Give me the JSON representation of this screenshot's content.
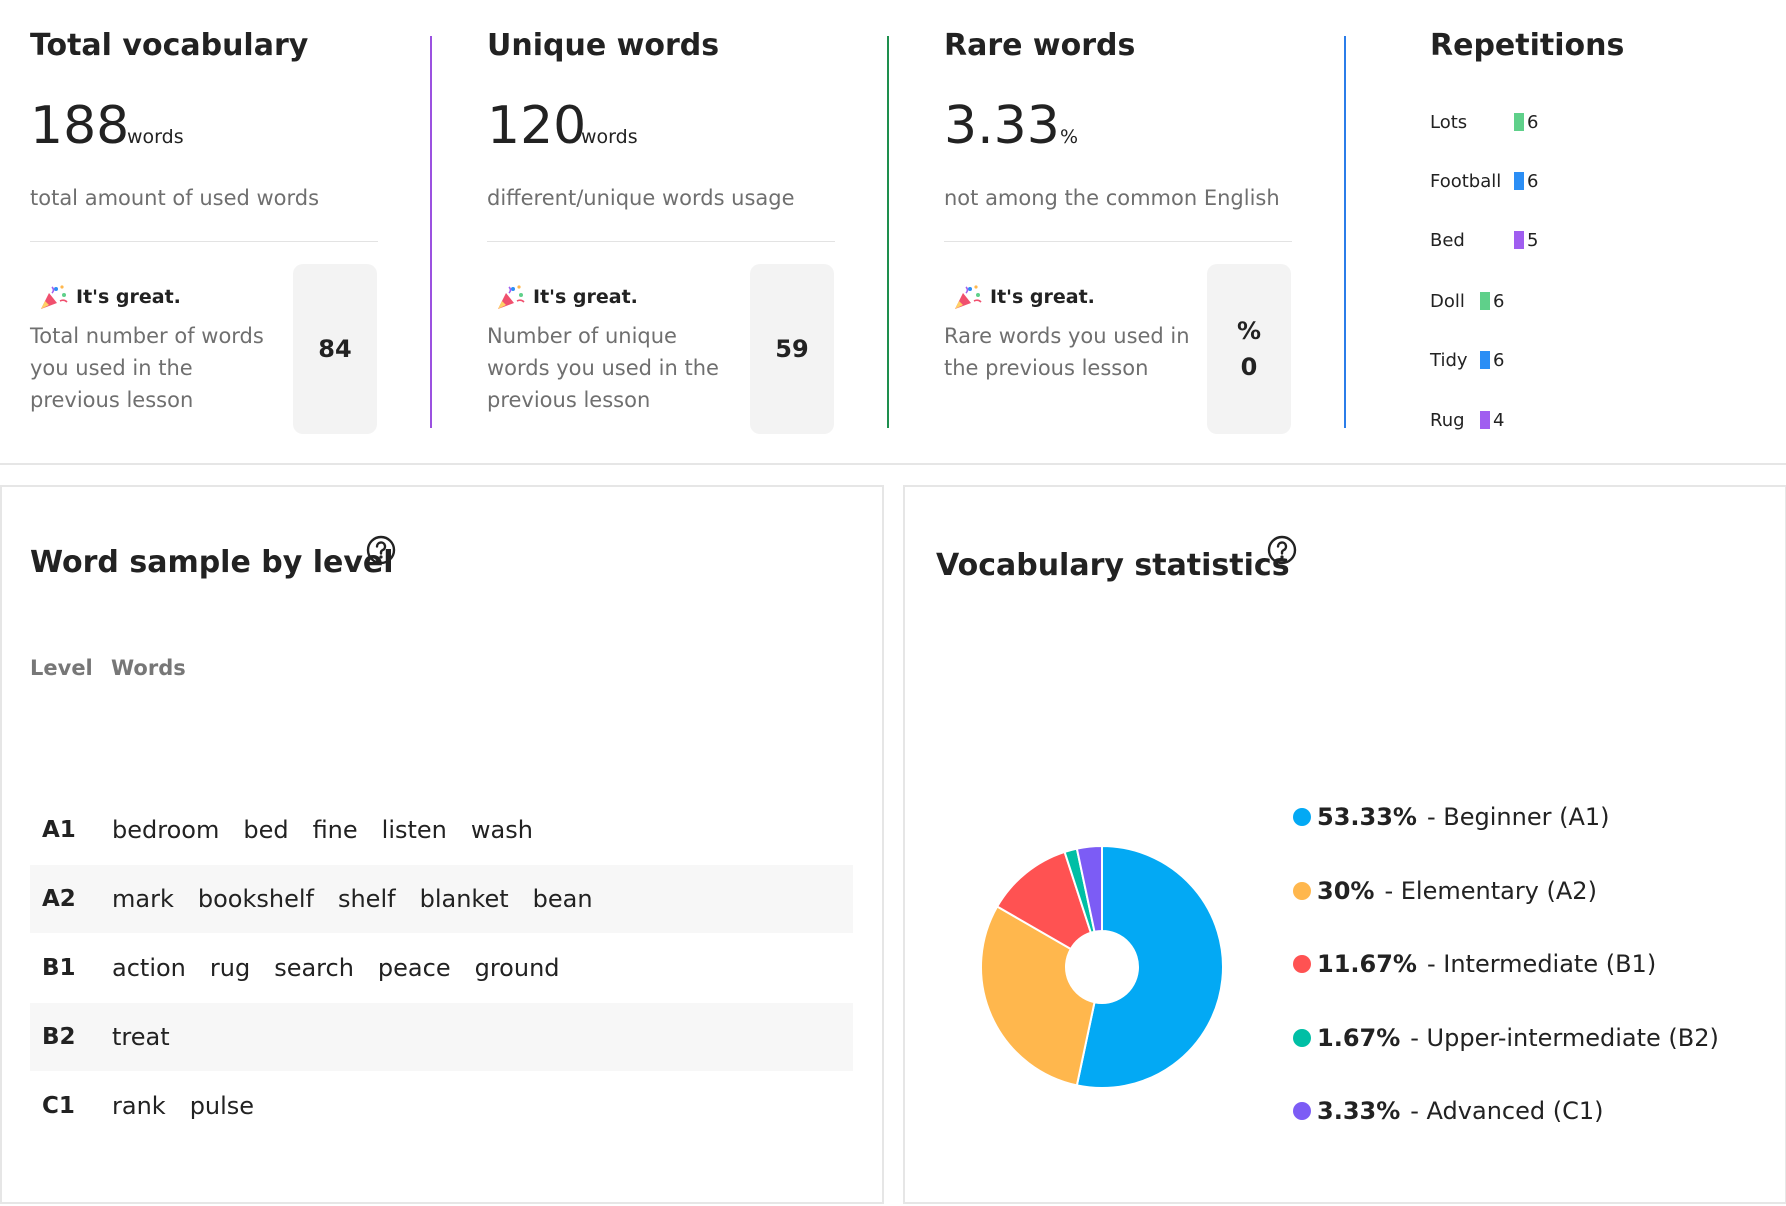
{
  "cards": [
    {
      "title": "Total vocabulary",
      "value": "188",
      "unit": "words",
      "subtitle": "total amount of used words",
      "great": "It's great.",
      "prev_desc": "Total number of words you used in the previous lesson",
      "prev_value": "84",
      "accent": "#9b51e0"
    },
    {
      "title": "Unique words",
      "value": "120",
      "unit": "words",
      "subtitle": "different/unique words usage",
      "great": "It's great.",
      "prev_desc": "Number of unique words you used in the previous lesson",
      "prev_value": "59",
      "accent": "#1e8f4e"
    },
    {
      "title": "Rare words",
      "value": "3.33",
      "unit": "%",
      "subtitle": "not among the common English",
      "great": "It's great.",
      "prev_desc": "Rare words you used in the previous lesson",
      "prev_symbol": "%",
      "prev_value": "0",
      "accent": "#2b7de9"
    }
  ],
  "repetitions": {
    "title": "Repetitions",
    "items": [
      {
        "label": "Lots",
        "count": "6",
        "color": "#5fd08a"
      },
      {
        "label": "Football",
        "count": "6",
        "color": "#2b8ef5"
      },
      {
        "label": "Bed",
        "count": "5",
        "color": "#a05ef0"
      },
      {
        "label": "Doll",
        "count": "6",
        "color": "#5fd08a"
      },
      {
        "label": "Tidy",
        "count": "6",
        "color": "#2b8ef5"
      },
      {
        "label": "Rug",
        "count": "4",
        "color": "#a05ef0"
      }
    ]
  },
  "word_sample": {
    "title": "Word sample by level",
    "help_icon": "question-circle-icon",
    "col_level": "Level",
    "col_words": "Words",
    "rows": [
      {
        "level": "A1",
        "words": [
          "bedroom",
          "bed",
          "fine",
          "listen",
          "wash"
        ]
      },
      {
        "level": "A2",
        "words": [
          "mark",
          "bookshelf",
          "shelf",
          "blanket",
          "bean"
        ]
      },
      {
        "level": "B1",
        "words": [
          "action",
          "rug",
          "search",
          "peace",
          "ground"
        ]
      },
      {
        "level": "B2",
        "words": [
          "treat"
        ]
      },
      {
        "level": "C1",
        "words": [
          "rank",
          "pulse"
        ]
      }
    ]
  },
  "vocab_stats": {
    "title": "Vocabulary statistics",
    "help_icon": "question-circle-icon"
  },
  "chart_data": {
    "type": "pie",
    "donut": true,
    "title": "Vocabulary statistics",
    "categories": [
      "Beginner (A1)",
      "Elementary (A2)",
      "Intermediate (B1)",
      "Upper-intermediate (B2)",
      "Advanced (C1)"
    ],
    "values": [
      53.33,
      30,
      11.67,
      1.67,
      3.33
    ],
    "labels": [
      "53.33%",
      "30%",
      "11.67%",
      "1.67%",
      "3.33%"
    ],
    "legend_text": [
      "- Beginner (A1)",
      "- Elementary (A2)",
      "- Intermediate (B1)",
      "- Upper-intermediate (B2)",
      "- Advanced (C1)"
    ],
    "colors": [
      "#03a9f4",
      "#ffb74d",
      "#ff5252",
      "#00bfa5",
      "#7c5cf5"
    ],
    "legend": "right"
  }
}
